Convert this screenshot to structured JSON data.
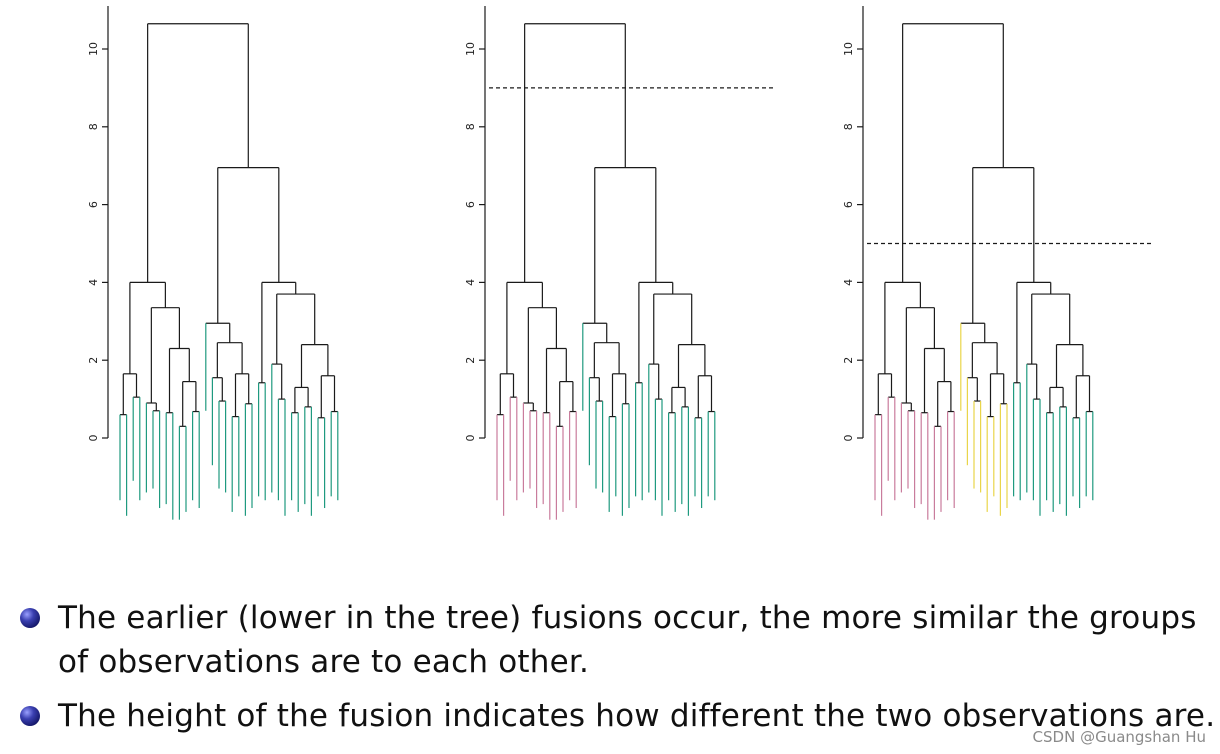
{
  "colors": {
    "tree": "#1a1a1a",
    "teal": "#1f9a7f",
    "pink": "#c97c9c",
    "yellow": "#e9d54a",
    "cut_line": "#1a1a1a"
  },
  "axis": {
    "ticks": [
      0,
      2,
      4,
      6,
      8,
      10
    ],
    "tick_labels": [
      "0",
      "2",
      "4",
      "6",
      "8",
      "10"
    ],
    "range": [
      0,
      11
    ]
  },
  "panels": [
    {
      "name": "no-cut",
      "cut_height": null,
      "leaf_colors": [
        "teal",
        "teal",
        "teal"
      ]
    },
    {
      "name": "cut-two-clusters",
      "cut_height": 9,
      "leaf_colors": [
        "pink",
        "teal",
        "teal"
      ]
    },
    {
      "name": "cut-three-clusters",
      "cut_height": 5,
      "leaf_colors": [
        "pink",
        "yellow",
        "teal"
      ]
    }
  ],
  "bullets": [
    {
      "text": "The earlier (lower in the tree) fusions occur, the more similar the groups of observations are to each other."
    },
    {
      "text": "The height of the fusion indicates how different the two observations are."
    }
  ],
  "watermark": "CSDN @Guangshan Hu"
}
